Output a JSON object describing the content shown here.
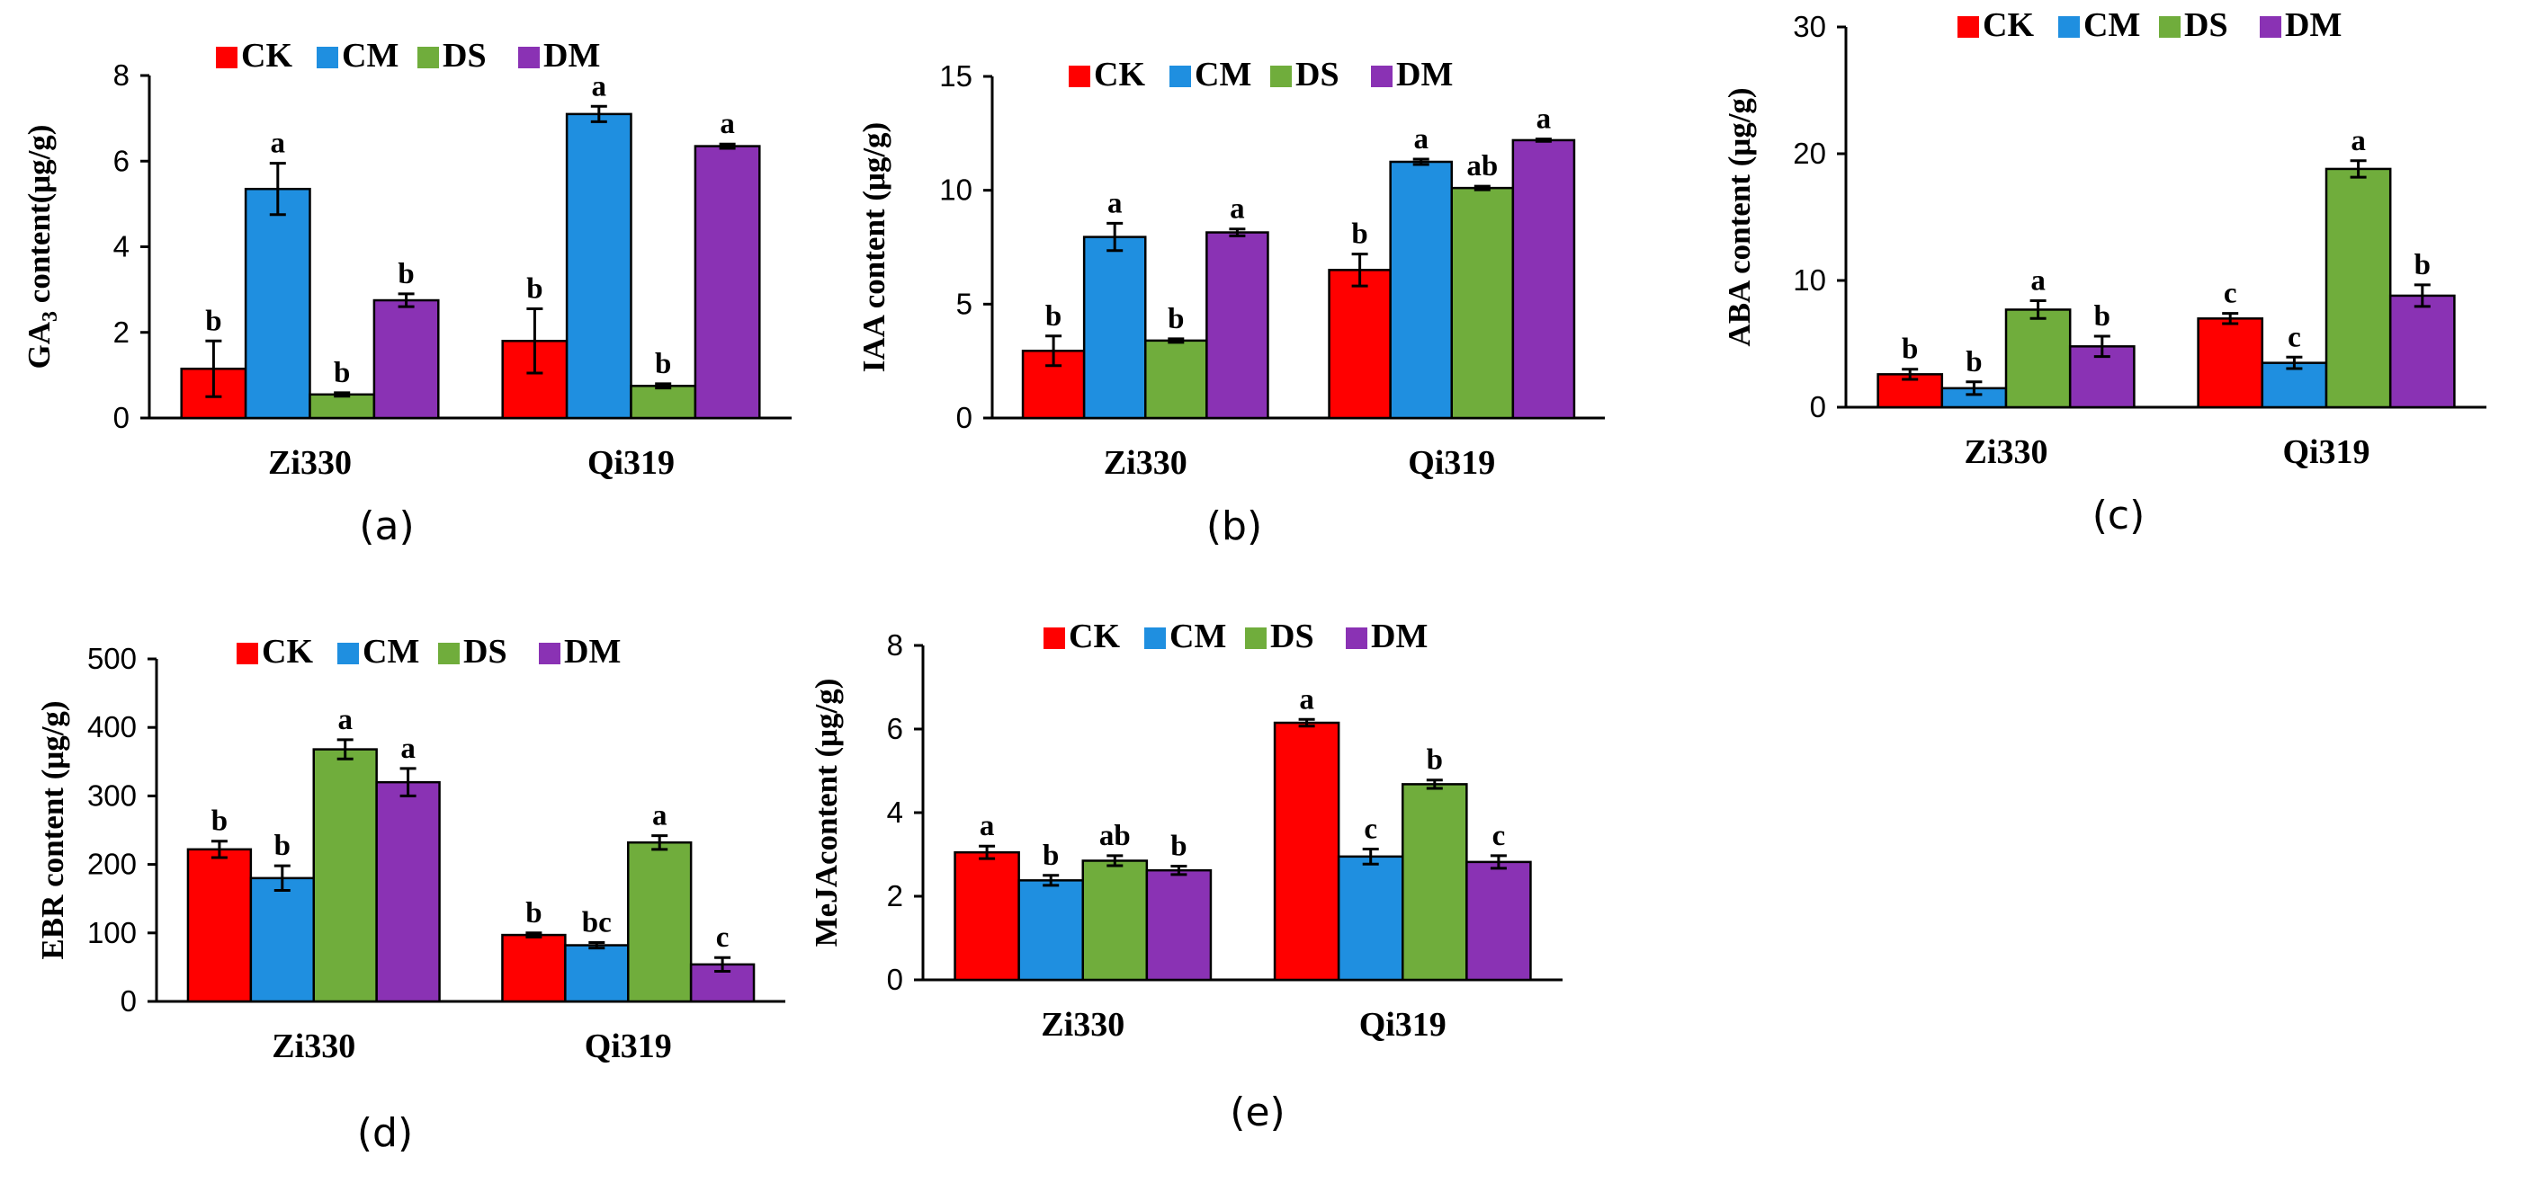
{
  "figure": "Plant hormone contents",
  "series_names": [
    "CK",
    "CM",
    "DS",
    "DM"
  ],
  "series_colors": [
    "#ff0000",
    "#1f8fe0",
    "#70ad3c",
    "#8a32b4"
  ],
  "chart_data": [
    {
      "type": "bar",
      "panel_label": "(a)",
      "ylabel_main": "GA",
      "ylabel_sub": "3",
      "ylabel_rest": " content(μg/g)",
      "categories": [
        "Zi330",
        "Qi319"
      ],
      "ylim": [
        0,
        8
      ],
      "yticks": [
        0,
        2,
        4,
        6,
        8
      ],
      "series": [
        {
          "name": "CK",
          "values": [
            1.15,
            1.8
          ],
          "errors": [
            0.65,
            0.75
          ],
          "letters": [
            "b",
            "b"
          ]
        },
        {
          "name": "CM",
          "values": [
            5.35,
            7.1
          ],
          "errors": [
            0.6,
            0.18
          ],
          "letters": [
            "a",
            "a"
          ]
        },
        {
          "name": "DS",
          "values": [
            0.55,
            0.75
          ],
          "errors": [
            0.04,
            0.05
          ],
          "letters": [
            "b",
            "b"
          ]
        },
        {
          "name": "DM",
          "values": [
            2.75,
            6.35
          ],
          "errors": [
            0.15,
            0.05
          ],
          "letters": [
            "b",
            "a"
          ]
        }
      ]
    },
    {
      "type": "bar",
      "panel_label": "(b)",
      "ylabel_main": "IAA content (μg/g)",
      "ylabel_sub": "",
      "ylabel_rest": "",
      "categories": [
        "Zi330",
        "Qi319"
      ],
      "ylim": [
        0,
        15
      ],
      "yticks": [
        0,
        5,
        10,
        15
      ],
      "series": [
        {
          "name": "CK",
          "values": [
            2.95,
            6.5
          ],
          "errors": [
            0.65,
            0.7
          ],
          "letters": [
            "b",
            "b"
          ]
        },
        {
          "name": "CM",
          "values": [
            7.95,
            11.25
          ],
          "errors": [
            0.6,
            0.12
          ],
          "letters": [
            "a",
            "a"
          ]
        },
        {
          "name": "DS",
          "values": [
            3.4,
            10.1
          ],
          "errors": [
            0.08,
            0.08
          ],
          "letters": [
            "b",
            "ab"
          ]
        },
        {
          "name": "DM",
          "values": [
            8.15,
            12.2
          ],
          "errors": [
            0.15,
            0.05
          ],
          "letters": [
            "a",
            "a"
          ]
        }
      ]
    },
    {
      "type": "bar",
      "panel_label": "(c)",
      "ylabel_main": "ABA content (μg/g)",
      "ylabel_sub": "",
      "ylabel_rest": "",
      "categories": [
        "Zi330",
        "Qi319"
      ],
      "ylim": [
        0,
        30
      ],
      "yticks": [
        0,
        10,
        20,
        30
      ],
      "series": [
        {
          "name": "CK",
          "values": [
            2.6,
            7.0
          ],
          "errors": [
            0.4,
            0.4
          ],
          "letters": [
            "b",
            "c"
          ]
        },
        {
          "name": "CM",
          "values": [
            1.5,
            3.5
          ],
          "errors": [
            0.5,
            0.45
          ],
          "letters": [
            "b",
            "c"
          ]
        },
        {
          "name": "DS",
          "values": [
            7.7,
            18.8
          ],
          "errors": [
            0.7,
            0.65
          ],
          "letters": [
            "a",
            "a"
          ]
        },
        {
          "name": "DM",
          "values": [
            4.8,
            8.8
          ],
          "errors": [
            0.8,
            0.85
          ],
          "letters": [
            "b",
            "b"
          ]
        }
      ]
    },
    {
      "type": "bar",
      "panel_label": "(d)",
      "ylabel_main": "EBR content (μg/g)",
      "ylabel_sub": "",
      "ylabel_rest": "",
      "categories": [
        "Zi330",
        "Qi319"
      ],
      "ylim": [
        0,
        500
      ],
      "yticks": [
        0,
        100,
        200,
        300,
        400,
        500
      ],
      "series": [
        {
          "name": "CK",
          "values": [
            222,
            97
          ],
          "errors": [
            12,
            3
          ],
          "letters": [
            "b",
            "b"
          ]
        },
        {
          "name": "CM",
          "values": [
            180,
            82
          ],
          "errors": [
            18,
            4
          ],
          "letters": [
            "b",
            "bc"
          ]
        },
        {
          "name": "DS",
          "values": [
            368,
            232
          ],
          "errors": [
            14,
            10
          ],
          "letters": [
            "a",
            "a"
          ]
        },
        {
          "name": "DM",
          "values": [
            320,
            54
          ],
          "errors": [
            20,
            10
          ],
          "letters": [
            "a",
            "c"
          ]
        }
      ]
    },
    {
      "type": "bar",
      "panel_label": "(e)",
      "ylabel_main": "MeJAcontent (μg/g)",
      "ylabel_sub": "",
      "ylabel_rest": "",
      "categories": [
        "Zi330",
        "Qi319"
      ],
      "ylim": [
        0,
        8
      ],
      "yticks": [
        0,
        2,
        4,
        6,
        8
      ],
      "series": [
        {
          "name": "CK",
          "values": [
            3.05,
            6.15
          ],
          "errors": [
            0.15,
            0.08
          ],
          "letters": [
            "a",
            "a"
          ]
        },
        {
          "name": "CM",
          "values": [
            2.38,
            2.95
          ],
          "errors": [
            0.12,
            0.18
          ],
          "letters": [
            "b",
            "c"
          ]
        },
        {
          "name": "DS",
          "values": [
            2.85,
            4.68
          ],
          "errors": [
            0.12,
            0.1
          ],
          "letters": [
            "ab",
            "b"
          ]
        },
        {
          "name": "DM",
          "values": [
            2.62,
            2.82
          ],
          "errors": [
            0.1,
            0.15
          ],
          "letters": [
            "b",
            "c"
          ]
        }
      ]
    }
  ]
}
